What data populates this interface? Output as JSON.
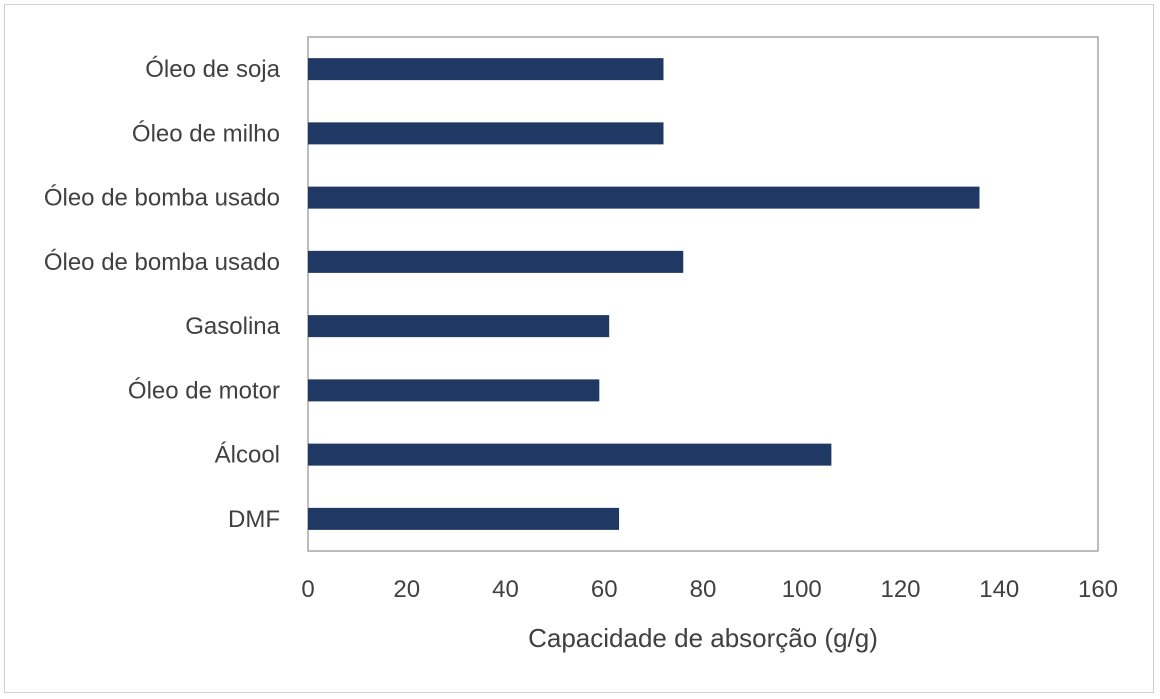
{
  "chart_data": {
    "type": "bar",
    "orientation": "horizontal",
    "categories": [
      "Óleo de soja",
      "Óleo de milho",
      "Óleo de bomba usado",
      "Óleo de bomba usado",
      "Gasolina",
      "Óleo de motor",
      "Álcool",
      "DMF"
    ],
    "values": [
      72,
      72,
      136,
      76,
      61,
      59,
      106,
      63
    ],
    "xlabel": "Capacidade de absorção (g/g)",
    "xlim": [
      0,
      160
    ],
    "xticks": [
      0,
      20,
      40,
      60,
      80,
      100,
      120,
      140,
      160
    ],
    "grid": false,
    "bar_color": "#1f3864",
    "axis_color": "#a6a6a6",
    "text_color": "#404040"
  }
}
